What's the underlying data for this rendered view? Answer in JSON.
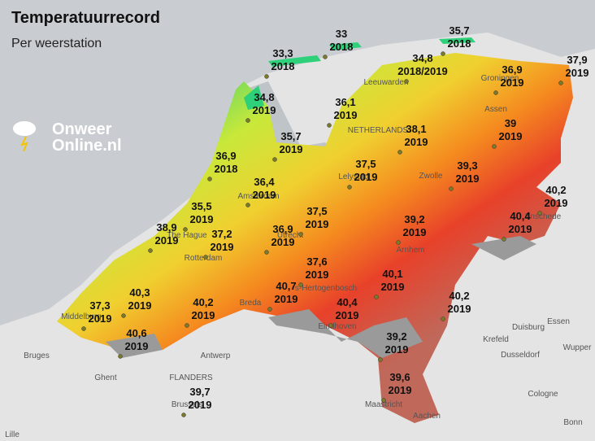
{
  "header": {
    "title": "Temperatuurrecord",
    "subtitle": "Per weerstation"
  },
  "logo": {
    "line1": "Onweer",
    "line2": "Online.nl"
  },
  "stations": [
    {
      "value": "33,3",
      "year": "2018"
    },
    {
      "value": "33",
      "year": "2018"
    },
    {
      "value": "35,7",
      "year": "2018"
    },
    {
      "value": "34,8",
      "year": "2018/2019"
    },
    {
      "value": "37,9",
      "year": "2019"
    },
    {
      "value": "36,9",
      "year": "2019"
    },
    {
      "value": "34,8",
      "year": "2019"
    },
    {
      "value": "36,1",
      "year": "2019"
    },
    {
      "value": "38,1",
      "year": "2019"
    },
    {
      "value": "39",
      "year": "2019"
    },
    {
      "value": "35,7",
      "year": "2019"
    },
    {
      "value": "36,9",
      "year": "2018"
    },
    {
      "value": "37,5",
      "year": "2019"
    },
    {
      "value": "39,3",
      "year": "2019"
    },
    {
      "value": "36,4",
      "year": "2019"
    },
    {
      "value": "40,2",
      "year": "2019"
    },
    {
      "value": "35,5",
      "year": "2019"
    },
    {
      "value": "37,5",
      "year": "2019"
    },
    {
      "value": "40,4",
      "year": "2019"
    },
    {
      "value": "38,9",
      "year": "2019"
    },
    {
      "value": "37,2",
      "year": "2019"
    },
    {
      "value": "36,9",
      "year": "2019"
    },
    {
      "value": "39,2",
      "year": "2019"
    },
    {
      "value": "37,6",
      "year": "2019"
    },
    {
      "value": "40,1",
      "year": "2019"
    },
    {
      "value": "40,7",
      "year": "2019"
    },
    {
      "value": "40,3",
      "year": "2019"
    },
    {
      "value": "40,2",
      "year": "2019"
    },
    {
      "value": "37,3",
      "year": "2019"
    },
    {
      "value": "40,2",
      "year": "2019"
    },
    {
      "value": "40,4",
      "year": "2019"
    },
    {
      "value": "40,6",
      "year": "2019"
    },
    {
      "value": "39,2",
      "year": "2019"
    },
    {
      "value": "39,6",
      "year": "2019"
    },
    {
      "value": "39,7",
      "year": "2019"
    }
  ],
  "places": [
    "Leeuwarden",
    "Groningen",
    "Assen",
    "NETHERLANDS",
    "Lelystad",
    "Zwolle",
    "Amsterdam",
    "The Hague",
    "Utrecht",
    "Rotterdam",
    "Enschede",
    "Arnhem",
    "'s-Hertogenbosch",
    "Breda",
    "Middelburg",
    "Eindhoven",
    "Antwerp",
    "Duisburg",
    "Essen",
    "Krefeld",
    "Dusseldorf",
    "Wupper",
    "Bruges",
    "Ghent",
    "FLANDERS",
    "Brussels",
    "Maastricht",
    "Cologne",
    "Aachen",
    "Bonn",
    "Lille"
  ]
}
